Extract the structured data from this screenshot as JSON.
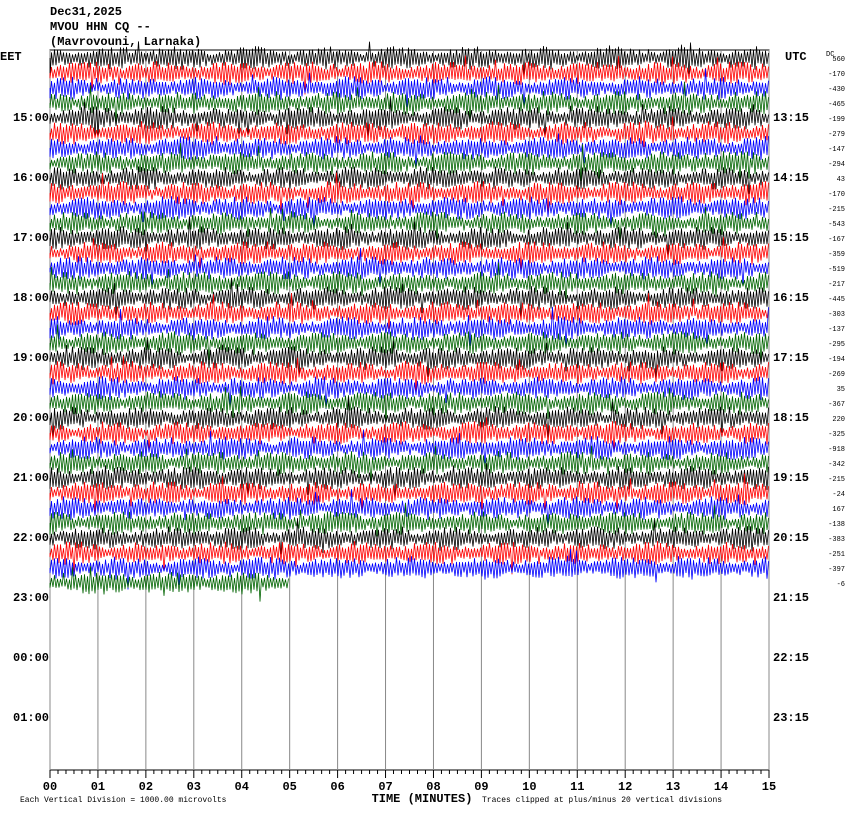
{
  "header": {
    "date": "Dec31,2025",
    "station": "MVOU HHN CQ --",
    "location": "(Mavrovouni, Larnaka)"
  },
  "left_axis_title": "EET",
  "right_axis_title": "UTC",
  "dc_title": "DC",
  "left_labels": [
    "15:00",
    "16:00",
    "17:00",
    "18:00",
    "19:00",
    "20:00",
    "21:00",
    "22:00",
    "23:00",
    "00:00",
    "01:00"
  ],
  "right_labels": [
    "13:15",
    "14:15",
    "15:15",
    "16:15",
    "17:15",
    "18:15",
    "19:15",
    "20:15",
    "21:15",
    "22:15",
    "23:15"
  ],
  "x_labels": [
    "00",
    "01",
    "02",
    "03",
    "04",
    "05",
    "06",
    "07",
    "08",
    "09",
    "10",
    "11",
    "12",
    "13",
    "14",
    "15"
  ],
  "x_title": "TIME (MINUTES)",
  "footer_left": "Each Vertical Division = 1000.00 microvolts",
  "footer_right": "Traces clipped at plus/minus 20 vertical divisions",
  "trace_colors": [
    "#000000",
    "#ff0000",
    "#0000ff",
    "#006400"
  ],
  "dc_offsets": [
    560,
    -170,
    -430,
    -465,
    -199,
    -279,
    -147,
    -294,
    43,
    -170,
    -215,
    -543,
    -167,
    -359,
    -519,
    -217,
    -445,
    -303,
    -137,
    -295,
    -194,
    -269,
    35,
    -367,
    220,
    -325,
    -918,
    -342,
    -215,
    -24,
    167,
    -138,
    -383,
    -251,
    -397,
    -6
  ]
}
